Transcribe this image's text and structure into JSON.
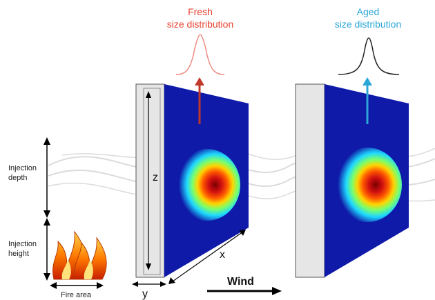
{
  "fresh_label": {
    "line1": "Fresh",
    "line2": "size distribution"
  },
  "aged_label": {
    "line1": "Aged",
    "line2": "size distribution"
  },
  "injection_depth": {
    "line1": "Injection",
    "line2": "depth"
  },
  "injection_height": {
    "line1": "Injection",
    "line2": "height"
  },
  "fire_area": "Fire area",
  "wind": "Wind",
  "axes": {
    "z": "z",
    "x": "x",
    "y": "y"
  },
  "colors": {
    "fresh": "#e8412e",
    "aged": "#2aa7d8",
    "panel": "#0f1aa8",
    "slab": "#e6e6e6"
  }
}
